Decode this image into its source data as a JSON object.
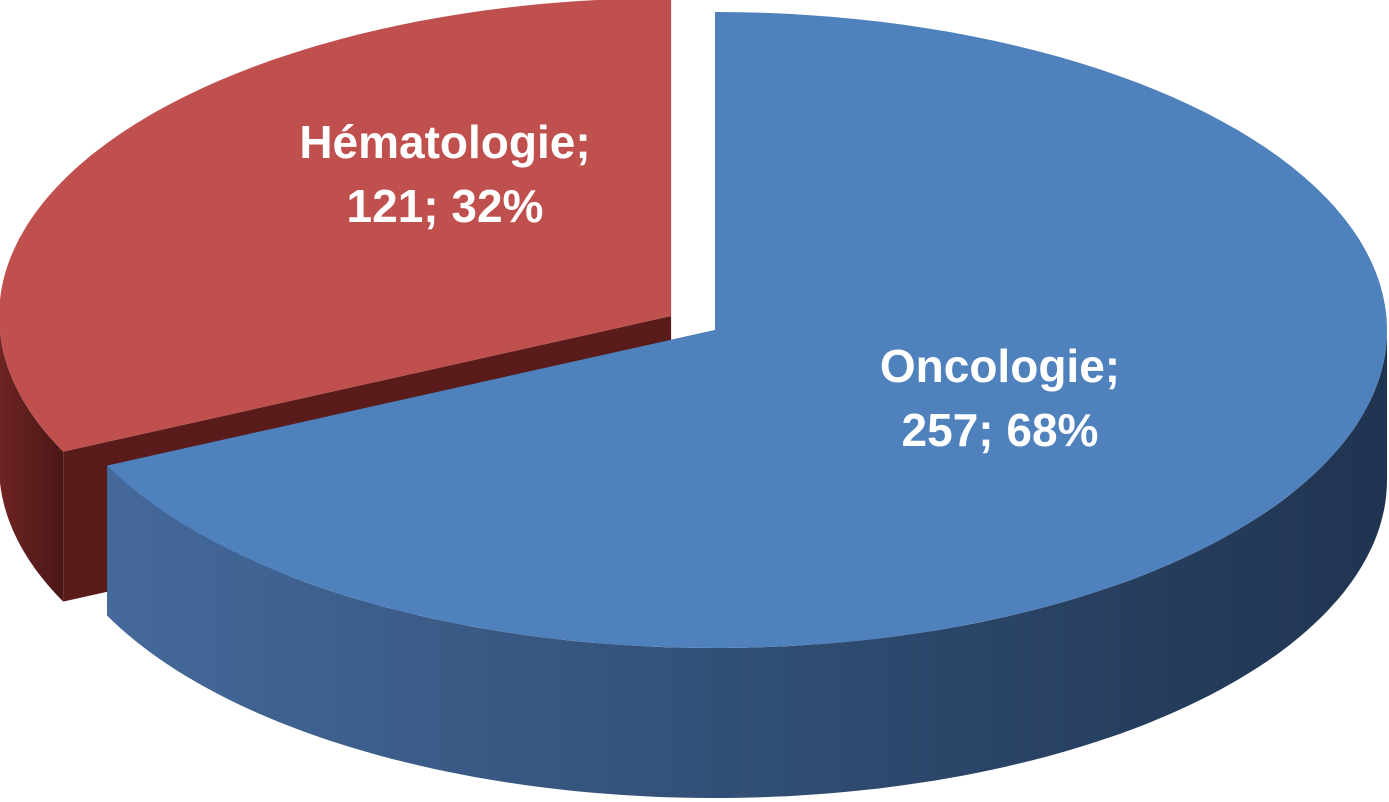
{
  "chart_data": {
    "type": "pie",
    "categories": [
      "Oncologie;",
      "Hématologie;"
    ],
    "values": [
      257,
      121
    ],
    "value_labels": [
      "257; 68%",
      "121; 32%"
    ],
    "colors": [
      "#4f81bd",
      "#c0504d"
    ],
    "explode": [
      false,
      true
    ],
    "three_d": true
  }
}
